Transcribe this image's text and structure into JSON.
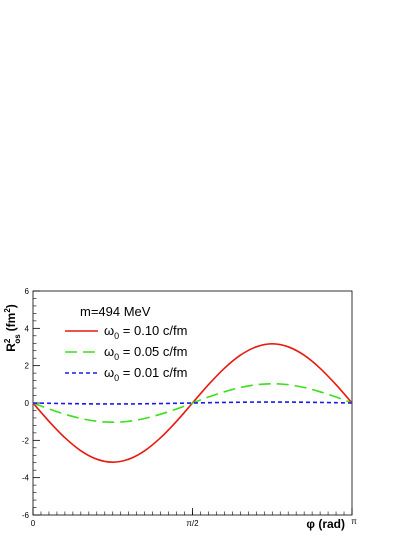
{
  "chart_data": {
    "type": "line",
    "title": "",
    "xlabel": "φ (rad)",
    "ylabel_main": "R",
    "ylabel_sup": "2",
    "ylabel_sub": "os",
    "ylabel_unit": "(fm",
    "ylabel_unit_sup": "2",
    "ylabel_unit_close": ")",
    "xlim": [
      0,
      3.14159
    ],
    "ylim": [
      -6,
      6
    ],
    "x_ticks": [
      {
        "value": 0,
        "label": "0"
      },
      {
        "value": 1.5708,
        "label": "π/2"
      },
      {
        "value": 3.14159,
        "label": "π"
      }
    ],
    "y_ticks": [
      {
        "value": -6,
        "label": "-6"
      },
      {
        "value": -4,
        "label": "-4"
      },
      {
        "value": -2,
        "label": "-2"
      },
      {
        "value": 0,
        "label": "0"
      },
      {
        "value": 2,
        "label": "2"
      },
      {
        "value": 4,
        "label": "4"
      },
      {
        "value": 6,
        "label": "6"
      }
    ],
    "legend_header": "m=494 MeV",
    "legend_position": "top-left",
    "x": [
      0,
      0.1571,
      0.3142,
      0.4712,
      0.6283,
      0.7854,
      0.9425,
      1.0996,
      1.2566,
      1.4137,
      1.5708,
      1.7279,
      1.885,
      2.042,
      2.1991,
      2.3562,
      2.5133,
      2.6704,
      2.8274,
      2.9845,
      3.1416
    ],
    "series": [
      {
        "name": "ω₀ = 0.10 c/fm",
        "name_base": "ω",
        "name_sub": "0",
        "name_rest": " = 0.10 c/fm",
        "color": "#e8190e",
        "dash": "solid",
        "values": [
          0,
          -0.98,
          -1.86,
          -2.56,
          -3.01,
          -3.17,
          -3.01,
          -2.56,
          -1.86,
          -0.98,
          0,
          0.98,
          1.86,
          2.56,
          3.01,
          3.17,
          3.01,
          2.56,
          1.86,
          0.98,
          0
        ]
      },
      {
        "name": "ω₀ = 0.05 c/fm",
        "name_base": "ω",
        "name_sub": "0",
        "name_rest": " = 0.05 c/fm",
        "color": "#39e01a",
        "dash": "long-dash",
        "values": [
          0,
          -0.32,
          -0.6,
          -0.83,
          -0.98,
          -1.03,
          -0.98,
          -0.83,
          -0.6,
          -0.32,
          0,
          0.32,
          0.6,
          0.83,
          0.98,
          1.03,
          0.98,
          0.83,
          0.6,
          0.32,
          0
        ]
      },
      {
        "name": "ω₀ = 0.01 c/fm",
        "name_base": "ω",
        "name_sub": "0",
        "name_rest": " = 0.01 c/fm",
        "color": "#1a1ae8",
        "dash": "short-dash",
        "values": [
          0,
          -0.015,
          -0.03,
          -0.04,
          -0.05,
          -0.052,
          -0.05,
          -0.04,
          -0.03,
          -0.015,
          0,
          0.015,
          0.03,
          0.04,
          0.05,
          0.052,
          0.05,
          0.04,
          0.03,
          0.015,
          0
        ]
      }
    ]
  }
}
